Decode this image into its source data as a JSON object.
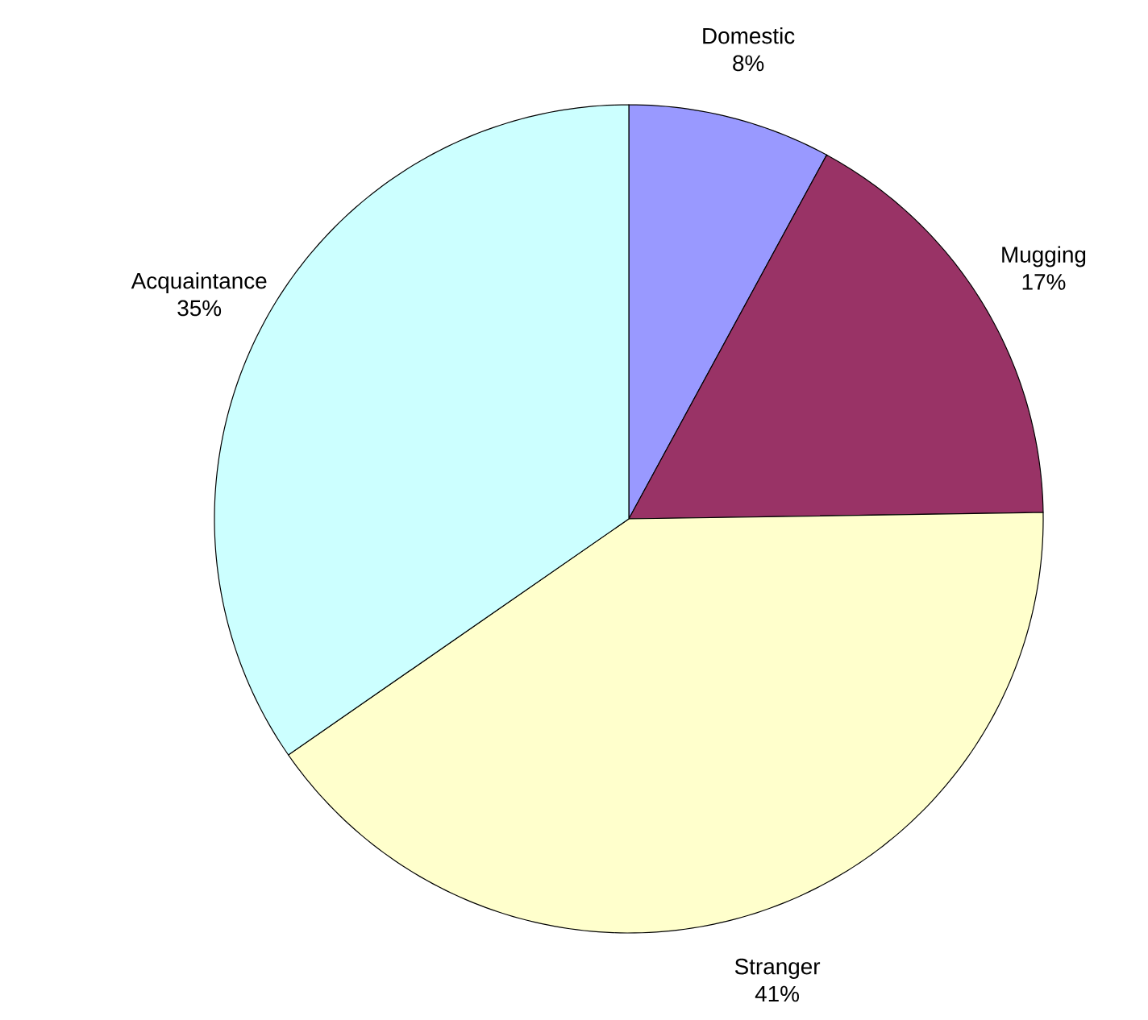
{
  "chart_data": {
    "type": "pie",
    "categories": [
      "Domestic",
      "Mugging",
      "Stranger",
      "Acquaintance"
    ],
    "values": [
      8,
      17,
      41,
      35
    ],
    "value_labels": [
      "8%",
      "17%",
      "41%",
      "35%"
    ],
    "colors": [
      "#9999ff",
      "#993366",
      "#ffffcc",
      "#ccffff"
    ]
  }
}
